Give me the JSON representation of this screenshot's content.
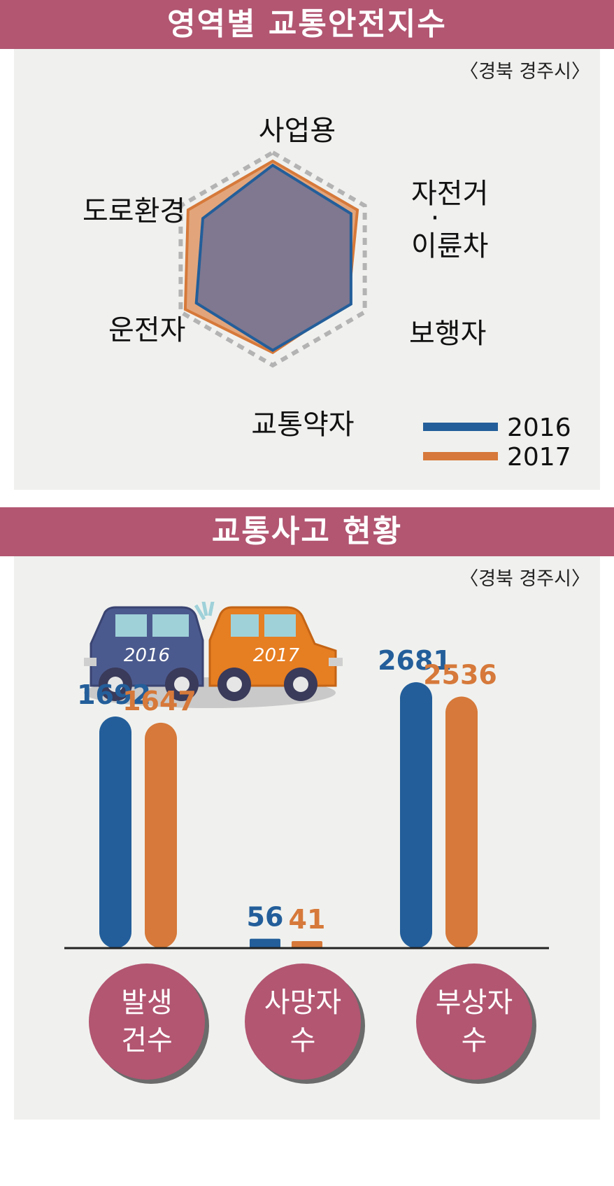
{
  "section1": {
    "title": "영역별 교통안전지수",
    "source": "〈경북 경주시〉"
  },
  "section2": {
    "title": "교통사고 현황",
    "source": "〈경북 경주시〉"
  },
  "colors": {
    "banner": "#b25672",
    "series_2016": "#235e9a",
    "series_2017": "#d6793a",
    "panel": "#f0f1ee"
  },
  "chart_data": [
    {
      "type": "radar",
      "axes": [
        "사업용",
        "자전거·이륜차",
        "보행자",
        "교통약자",
        "운전자",
        "도로환경"
      ],
      "axis_labels": {
        "사업용": "사업용",
        "자전거_line1": "자전거",
        "자전거_dot": "·",
        "자전거_line2": "이륜차",
        "보행자": "보행자",
        "교통약자": "교통약자",
        "운전자": "운전자",
        "도로환경": "도로환경"
      },
      "series": [
        {
          "name": "2016",
          "values": [
            0.88,
            0.85,
            0.85,
            0.86,
            0.83,
            0.76
          ]
        },
        {
          "name": "2017",
          "values": [
            0.92,
            0.92,
            0.82,
            0.88,
            0.95,
            0.92
          ]
        }
      ],
      "max": 1.0,
      "legend": [
        "2016",
        "2017"
      ],
      "legend_position": "bottom-right"
    },
    {
      "type": "bar",
      "categories": [
        "발생 건수",
        "사망자 수",
        "부상자 수"
      ],
      "category_lines": [
        [
          "발생",
          "건수"
        ],
        [
          "사망자",
          "수"
        ],
        [
          "부상자",
          "수"
        ]
      ],
      "series": [
        {
          "name": "2016",
          "values": [
            1692,
            56,
            2681
          ]
        },
        {
          "name": "2017",
          "values": [
            1647,
            41,
            2536
          ]
        }
      ],
      "illustration_labels": [
        "2016",
        "2017"
      ]
    }
  ]
}
